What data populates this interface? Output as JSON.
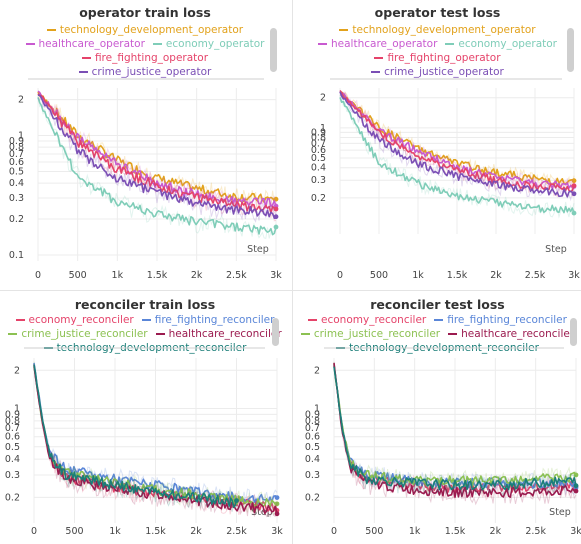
{
  "chart_data": [
    {
      "type": "line",
      "title": "operator train loss",
      "xlabel": "Step",
      "ylabel": "",
      "yscale": "log",
      "xlim": [
        0,
        3000
      ],
      "ylim": [
        0.1,
        2.5
      ],
      "xticks": [
        "0",
        "500",
        "1k",
        "1.5k",
        "2k",
        "2.5k",
        "3k"
      ],
      "yticks": [
        "0.1",
        "0.2",
        "0.3",
        "0.4",
        "0.5",
        "0.6",
        "0.7",
        "0.8",
        "0.9",
        "1",
        "2"
      ],
      "legend_rows": [
        [
          "technology_development_operator"
        ],
        [
          "healthcare_operator",
          "economy_operator"
        ],
        [
          "fire_fighting_operator"
        ],
        [
          "crime_justice_operator"
        ]
      ],
      "series": [
        {
          "name": "technology_development_operator",
          "color": "#e2a21c",
          "x": [
            0,
            500,
            1000,
            1500,
            2000,
            2500,
            3000
          ],
          "y": [
            2.3,
            1.0,
            0.62,
            0.44,
            0.36,
            0.31,
            0.29
          ]
        },
        {
          "name": "healthcare_operator",
          "color": "#c85ad0",
          "x": [
            0,
            500,
            1000,
            1500,
            2000,
            2500,
            3000
          ],
          "y": [
            2.3,
            0.95,
            0.58,
            0.4,
            0.32,
            0.28,
            0.27
          ]
        },
        {
          "name": "economy_operator",
          "color": "#7fcdb8",
          "x": [
            0,
            500,
            1000,
            1500,
            2000,
            2500,
            3000
          ],
          "y": [
            2.0,
            0.45,
            0.28,
            0.22,
            0.19,
            0.17,
            0.16
          ]
        },
        {
          "name": "fire_fighting_operator",
          "color": "#e5436a",
          "x": [
            0,
            500,
            1000,
            1500,
            2000,
            2500,
            3000
          ],
          "y": [
            2.3,
            0.88,
            0.52,
            0.38,
            0.3,
            0.26,
            0.24
          ]
        },
        {
          "name": "crime_justice_operator",
          "color": "#7b4fb5",
          "x": [
            0,
            500,
            1000,
            1500,
            2000,
            2500,
            3000
          ],
          "y": [
            2.2,
            0.75,
            0.44,
            0.33,
            0.27,
            0.24,
            0.22
          ]
        }
      ]
    },
    {
      "type": "line",
      "title": "operator test loss",
      "xlabel": "Step",
      "ylabel": "",
      "yscale": "log",
      "xlim": [
        0,
        3000
      ],
      "ylim": [
        0.1,
        2.5
      ],
      "xticks": [
        "0",
        "500",
        "1k",
        "1.5k",
        "2k",
        "2.5k",
        "3k"
      ],
      "yticks": [
        "0.2",
        "0.3",
        "0.4",
        "0.5",
        "0.6",
        "0.7",
        "0.8",
        "0.9",
        "1",
        "2"
      ],
      "legend_rows": [
        [
          "technology_development_operator"
        ],
        [
          "healthcare_operator",
          "economy_operator"
        ],
        [
          "fire_fighting_operator"
        ],
        [
          "crime_justice_operator"
        ]
      ],
      "series": [
        {
          "name": "technology_development_operator",
          "color": "#e2a21c",
          "x": [
            0,
            500,
            1000,
            1500,
            2000,
            2500,
            3000
          ],
          "y": [
            2.3,
            1.0,
            0.62,
            0.44,
            0.36,
            0.31,
            0.28
          ]
        },
        {
          "name": "healthcare_operator",
          "color": "#c85ad0",
          "x": [
            0,
            500,
            1000,
            1500,
            2000,
            2500,
            3000
          ],
          "y": [
            2.3,
            0.95,
            0.58,
            0.4,
            0.32,
            0.28,
            0.26
          ]
        },
        {
          "name": "economy_operator",
          "color": "#7fcdb8",
          "x": [
            0,
            500,
            1000,
            1500,
            2000,
            2500,
            3000
          ],
          "y": [
            2.0,
            0.45,
            0.28,
            0.21,
            0.18,
            0.16,
            0.15
          ]
        },
        {
          "name": "fire_fighting_operator",
          "color": "#e5436a",
          "x": [
            0,
            500,
            1000,
            1500,
            2000,
            2500,
            3000
          ],
          "y": [
            2.3,
            0.88,
            0.52,
            0.38,
            0.3,
            0.26,
            0.25
          ]
        },
        {
          "name": "crime_justice_operator",
          "color": "#7b4fb5",
          "x": [
            0,
            500,
            1000,
            1500,
            2000,
            2500,
            3000
          ],
          "y": [
            2.2,
            0.75,
            0.44,
            0.33,
            0.27,
            0.24,
            0.22
          ]
        }
      ]
    },
    {
      "type": "line",
      "title": "reconciler train loss",
      "xlabel": "Step",
      "ylabel": "",
      "yscale": "log",
      "xlim": [
        0,
        3000
      ],
      "ylim": [
        0.14,
        2.5
      ],
      "xticks": [
        "0",
        "500",
        "1k",
        "1.5k",
        "2k",
        "2.5k",
        "3k"
      ],
      "yticks": [
        "0.2",
        "0.3",
        "0.4",
        "0.5",
        "0.6",
        "0.7",
        "0.8",
        "0.9",
        "1",
        "2"
      ],
      "legend_rows": [
        [
          "economy_reconciler",
          "fire_fighting_reconciler"
        ],
        [
          "crime_justice_reconciler",
          "healthcare_reconciler"
        ],
        [
          "technology_development_reconciler"
        ]
      ],
      "series": [
        {
          "name": "economy_reconciler",
          "color": "#e5436a",
          "x": [
            0,
            100,
            200,
            400,
            1000,
            1500,
            2000,
            2500,
            3000
          ],
          "y": [
            2.2,
            0.8,
            0.4,
            0.29,
            0.24,
            0.22,
            0.2,
            0.18,
            0.17
          ]
        },
        {
          "name": "fire_fighting_reconciler",
          "color": "#5a86d8",
          "x": [
            0,
            100,
            200,
            400,
            1000,
            1500,
            2000,
            2500,
            3000
          ],
          "y": [
            2.2,
            0.85,
            0.44,
            0.33,
            0.28,
            0.25,
            0.22,
            0.2,
            0.19
          ]
        },
        {
          "name": "crime_justice_reconciler",
          "color": "#8cc152",
          "x": [
            0,
            100,
            200,
            400,
            1000,
            1500,
            2000,
            2500,
            3000
          ],
          "y": [
            2.2,
            0.8,
            0.41,
            0.31,
            0.26,
            0.23,
            0.21,
            0.19,
            0.18
          ]
        },
        {
          "name": "healthcare_reconciler",
          "color": "#9b1b4f",
          "x": [
            0,
            100,
            200,
            400,
            1000,
            1500,
            2000,
            2500,
            3000
          ],
          "y": [
            2.2,
            0.78,
            0.39,
            0.28,
            0.23,
            0.21,
            0.19,
            0.17,
            0.16
          ]
        },
        {
          "name": "technology_development_reconciler",
          "color": "#1b7e78",
          "x": [
            0,
            100,
            200,
            400,
            1000,
            1500,
            2000,
            2500
          ],
          "y": [
            2.2,
            0.82,
            0.42,
            0.3,
            0.25,
            0.22,
            0.2,
            0.18
          ]
        }
      ]
    },
    {
      "type": "line",
      "title": "reconciler test loss",
      "xlabel": "Step",
      "ylabel": "",
      "yscale": "log",
      "xlim": [
        0,
        3000
      ],
      "ylim": [
        0.14,
        2.5
      ],
      "xticks": [
        "0",
        "500",
        "1k",
        "1.5k",
        "2k",
        "2.5k",
        "3k"
      ],
      "yticks": [
        "0.2",
        "0.3",
        "0.4",
        "0.5",
        "0.6",
        "0.7",
        "0.8",
        "0.9",
        "1",
        "2"
      ],
      "legend_rows": [
        [
          "economy_reconciler",
          "fire_fighting_reconciler"
        ],
        [
          "crime_justice_reconciler",
          "healthcare_reconciler"
        ],
        [
          "technology_development_reconciler"
        ]
      ],
      "series": [
        {
          "name": "economy_reconciler",
          "color": "#e5436a",
          "x": [
            0,
            100,
            200,
            400,
            1000,
            1500,
            2000,
            2500,
            3000
          ],
          "y": [
            2.2,
            0.7,
            0.36,
            0.28,
            0.25,
            0.24,
            0.24,
            0.24,
            0.25
          ]
        },
        {
          "name": "fire_fighting_reconciler",
          "color": "#5a86d8",
          "x": [
            0,
            100,
            200,
            400,
            1000,
            1500,
            2000,
            2500,
            3000
          ],
          "y": [
            2.2,
            0.72,
            0.38,
            0.3,
            0.27,
            0.26,
            0.26,
            0.26,
            0.26
          ]
        },
        {
          "name": "crime_justice_reconciler",
          "color": "#8cc152",
          "x": [
            0,
            100,
            200,
            400,
            1000,
            1500,
            2000,
            2500,
            3000
          ],
          "y": [
            2.2,
            0.72,
            0.38,
            0.3,
            0.27,
            0.27,
            0.27,
            0.28,
            0.29
          ]
        },
        {
          "name": "healthcare_reconciler",
          "color": "#9b1b4f",
          "x": [
            0,
            100,
            200,
            400,
            1000,
            1500,
            2000,
            2500,
            3000
          ],
          "y": [
            2.2,
            0.68,
            0.34,
            0.26,
            0.23,
            0.22,
            0.22,
            0.22,
            0.23
          ]
        },
        {
          "name": "technology_development_reconciler",
          "color": "#1b7e78",
          "x": [
            0,
            100,
            200,
            400,
            1000,
            1500,
            2000,
            2500,
            3000
          ],
          "y": [
            2.2,
            0.7,
            0.36,
            0.28,
            0.26,
            0.25,
            0.25,
            0.26,
            0.27
          ]
        }
      ]
    }
  ]
}
